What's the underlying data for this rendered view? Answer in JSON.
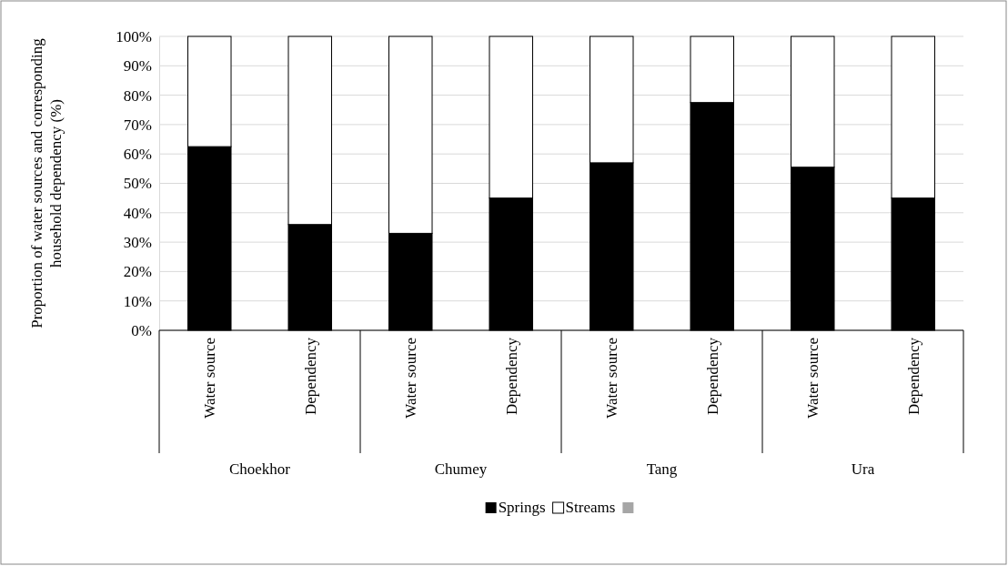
{
  "chart_data": {
    "type": "bar",
    "stacked": true,
    "ylabel": "Proportion of water sources and corresponding household dependency (%)",
    "categories": [
      "Water source",
      "Dependency",
      "Water source",
      "Dependency",
      "Water source",
      "Dependency",
      "Water source",
      "Dependency"
    ],
    "annotations": [
      "Choekhor",
      "Chumey",
      "Tang",
      "Ura"
    ],
    "series": [
      {
        "name": "Springs",
        "color": "#000000",
        "values": [
          62.5,
          36,
          33,
          45,
          57,
          77.5,
          55.5,
          45
        ]
      },
      {
        "name": "Streams",
        "color": "#ffffff",
        "values": [
          37.5,
          64,
          67,
          55,
          43,
          22.5,
          44.5,
          55
        ]
      },
      {
        "color": "#a6a6a6",
        "values": [
          null,
          null,
          null,
          null,
          null,
          null,
          null,
          null
        ]
      }
    ],
    "ylim": [
      0,
      100
    ],
    "yticks": [
      {
        "value": 0,
        "label": "0%"
      },
      {
        "value": 10,
        "label": "10%"
      },
      {
        "value": 20,
        "label": "20%"
      },
      {
        "value": 30,
        "label": "30%"
      },
      {
        "value": 40,
        "label": "40%"
      },
      {
        "value": 50,
        "label": "50%"
      },
      {
        "value": 60,
        "label": "60%"
      },
      {
        "value": 70,
        "label": "70%"
      },
      {
        "value": 80,
        "label": "80%"
      },
      {
        "value": 90,
        "label": "90%"
      },
      {
        "value": 100,
        "label": "100%"
      }
    ],
    "grid": "y",
    "legend": "bottom"
  }
}
